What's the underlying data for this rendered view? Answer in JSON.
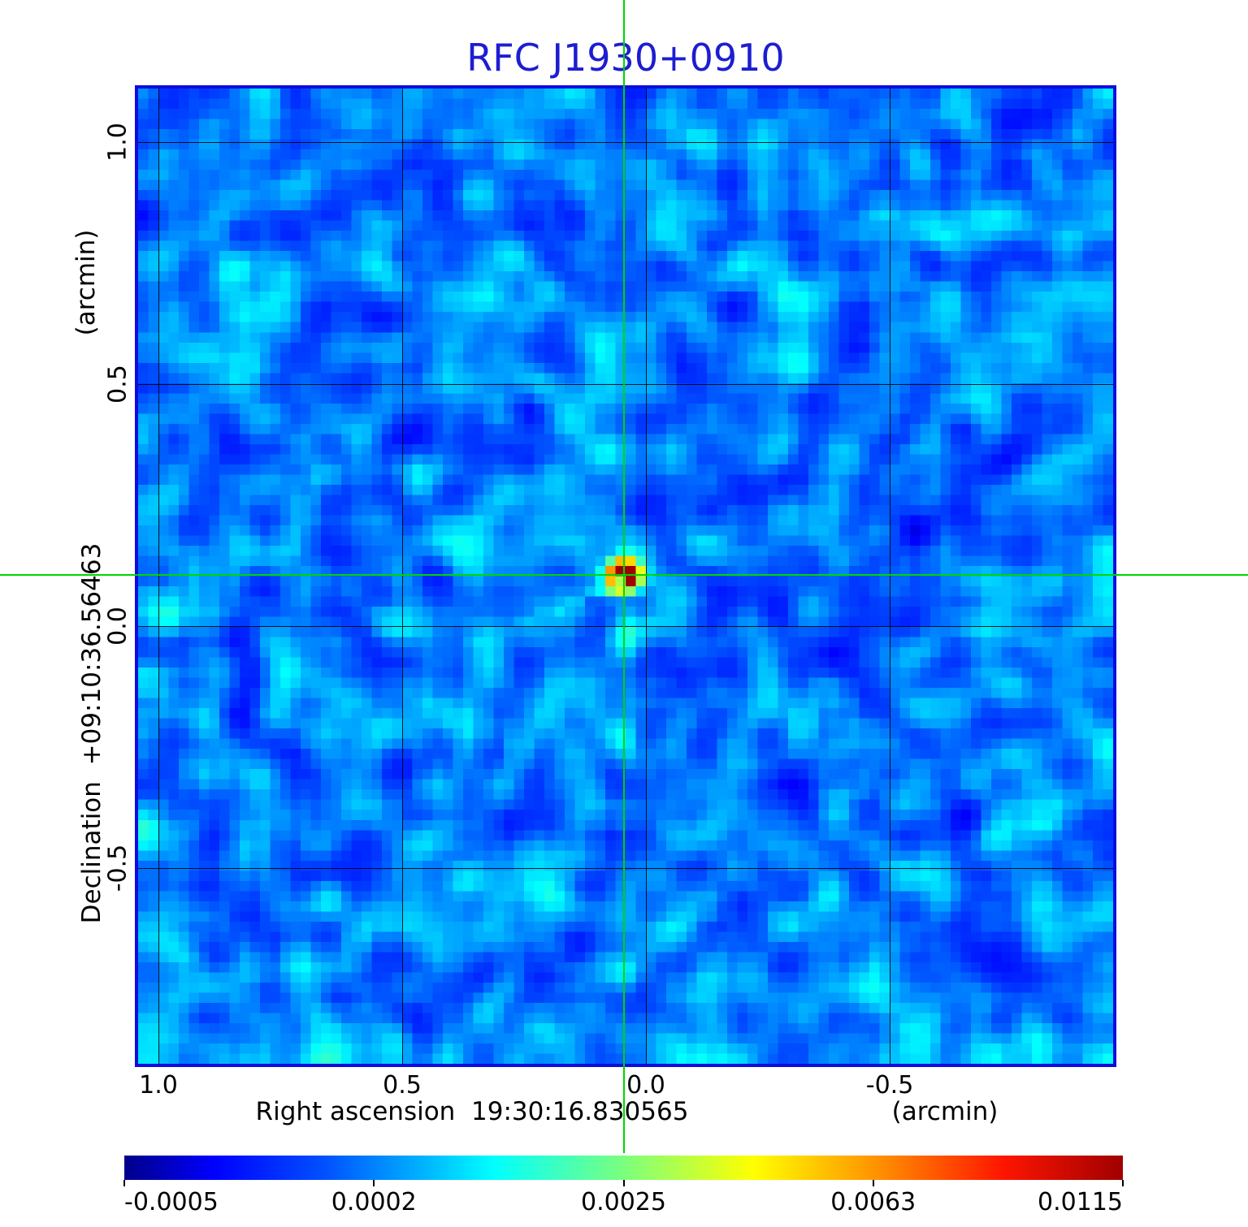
{
  "figure": {
    "title": "RFC J1930+0910",
    "title_color": "#1d1dd1",
    "frame_color": "#0c0cdf"
  },
  "x_axis": {
    "label": "Right ascension  19:30:16.830565",
    "unit": "(arcmin)",
    "ticks": [
      {
        "value": 1.0,
        "label": "1.0"
      },
      {
        "value": 0.5,
        "label": "0.5"
      },
      {
        "value": 0.0,
        "label": "0.0"
      },
      {
        "value": -0.5,
        "label": "-0.5"
      }
    ],
    "range_left": 1.0417,
    "range_right": -0.9583
  },
  "y_axis": {
    "label": "Declination  +09:10:36.56463",
    "unit": "(arcmin)",
    "ticks": [
      {
        "value": 1.0,
        "label": "1.0"
      },
      {
        "value": 0.5,
        "label": "0.5"
      },
      {
        "value": 0.0,
        "label": "0.0"
      },
      {
        "value": -0.5,
        "label": "-0.5"
      }
    ],
    "range_top": 1.111,
    "range_bottom": -0.904
  },
  "crosshair": {
    "color": "#00d500",
    "x_arcmin": 0.045,
    "y_arcmin": 0.106
  },
  "colorbar": {
    "tick_labels": [
      "-0.0005",
      "0.0002",
      "0.0025",
      "0.0063",
      "0.0115"
    ],
    "tick_values": [
      -0.0005,
      0.0002,
      0.0025,
      0.0063,
      0.0115
    ],
    "scale": "sqrt",
    "colormap_stops": [
      [
        0.0,
        "#000089"
      ],
      [
        0.09,
        "#0000ff"
      ],
      [
        0.2,
        "#0050ff"
      ],
      [
        0.3,
        "#00b4ff"
      ],
      [
        0.37,
        "#00ffff"
      ],
      [
        0.5,
        "#7bff7e"
      ],
      [
        0.63,
        "#ffff00"
      ],
      [
        0.76,
        "#ff8c00"
      ],
      [
        0.88,
        "#ff1500"
      ],
      [
        1.0,
        "#a00000"
      ]
    ]
  },
  "chart_data": {
    "type": "heatmap",
    "title": "RFC J1930+0910",
    "xlabel": "Right ascension  19:30:16.830565  (arcmin)",
    "ylabel": "Declination  +09:10:36.56463  (arcmin)",
    "x_range_arcmin": [
      1.0417,
      -0.9583
    ],
    "y_range_arcmin": [
      -0.904,
      1.111
    ],
    "x_ticks": [
      1.0,
      0.5,
      0.0,
      -0.5
    ],
    "y_ticks": [
      1.0,
      0.5,
      0.0,
      -0.5
    ],
    "grid": true,
    "legend": false,
    "intensity_scale": {
      "type": "sqrt",
      "vmin": -0.0005,
      "vmax": 0.0115,
      "colorbar_ticks": [
        -0.0005,
        0.0002,
        0.0025,
        0.0063,
        0.0115
      ],
      "colormap": "jet-like (dark blue - blue - cyan - green - yellow - orange - red - dark red)"
    },
    "source": {
      "name": "RFC J1930+0910",
      "ra_offset_arcmin": 0.045,
      "dec_offset_arcmin": 0.106,
      "peak_value": 0.0115,
      "marker": "green crosshair through peak"
    },
    "background": {
      "approx_level": 0.0002,
      "approx_range": [
        -0.0005,
        0.0008
      ],
      "appearance": "blocky blue interferometric noise, pixel size about 12.5 px"
    }
  }
}
